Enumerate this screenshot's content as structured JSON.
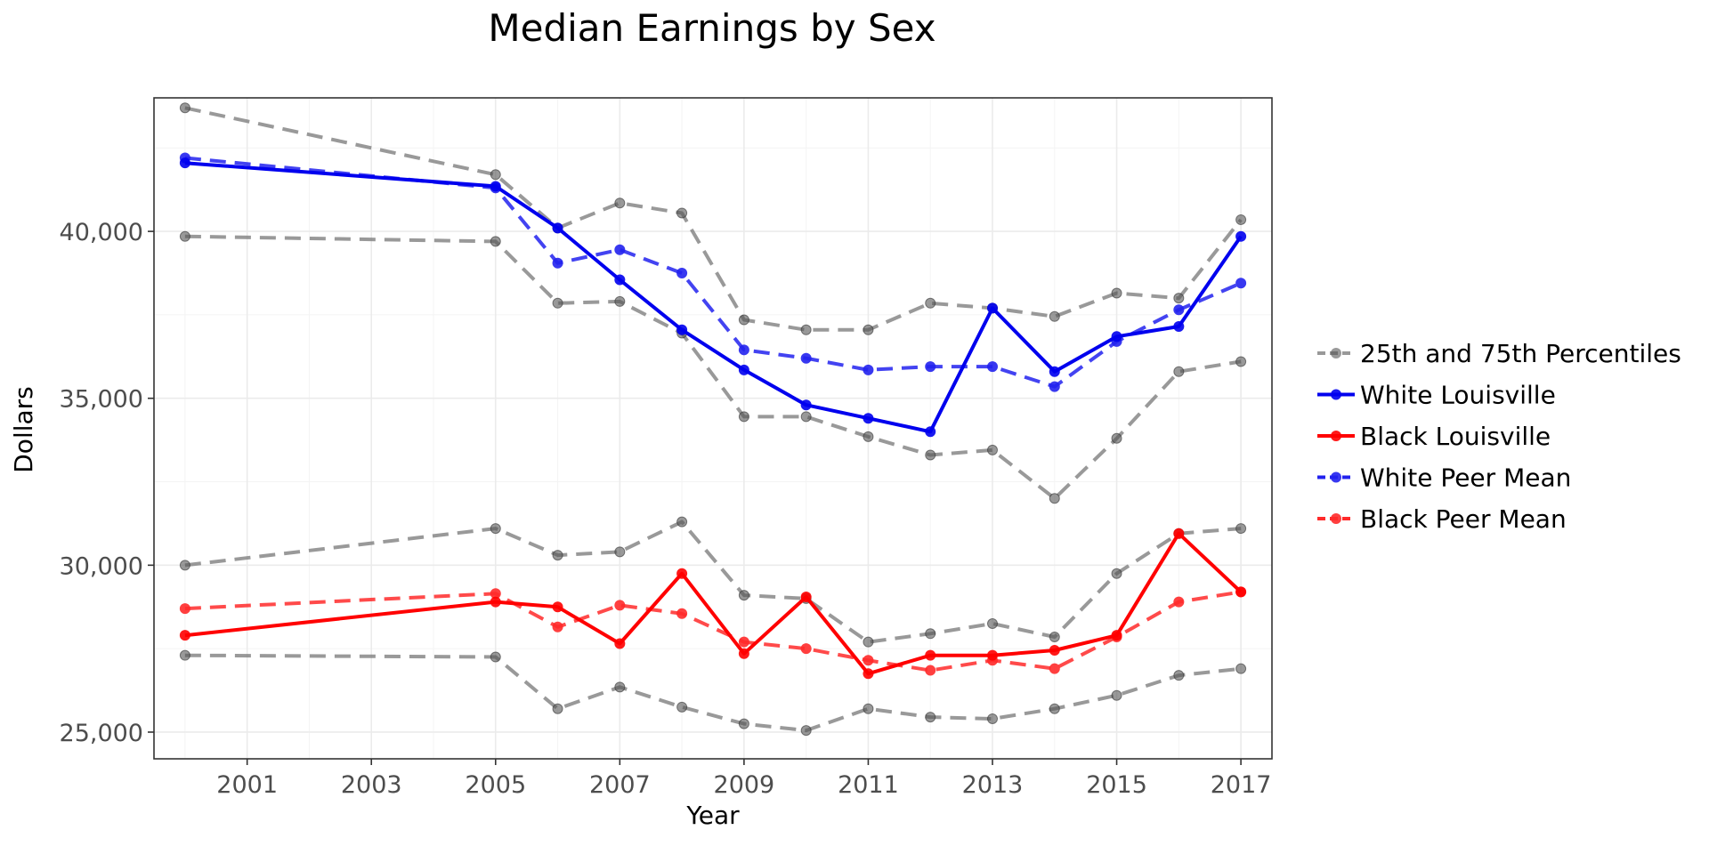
{
  "chart_data": {
    "type": "line",
    "title": "Median Earnings by Sex",
    "xlabel": "Year",
    "ylabel": "Dollars",
    "xlim": [
      1999.5,
      2017.5
    ],
    "ylim": [
      24200,
      44000
    ],
    "x_ticks": [
      2001,
      2003,
      2005,
      2007,
      2009,
      2011,
      2013,
      2015,
      2017
    ],
    "y_ticks": [
      25000,
      30000,
      35000,
      40000
    ],
    "y_tick_labels": [
      "25,000",
      "30,000",
      "35,000",
      "40,000"
    ],
    "grid": true,
    "legend_position": "right",
    "x": [
      2000,
      2005,
      2006,
      2007,
      2008,
      2009,
      2010,
      2011,
      2012,
      2013,
      2014,
      2015,
      2016,
      2017
    ],
    "series": [
      {
        "name": "25th and 75th Percentiles",
        "group": "white-p75",
        "color": "#808080",
        "style": "dashed",
        "values": [
          43700,
          41700,
          40100,
          40850,
          40550,
          37350,
          37050,
          37050,
          37850,
          37700,
          37450,
          38150,
          38000,
          40350
        ]
      },
      {
        "name": "25th and 75th Percentiles",
        "group": "white-p25",
        "color": "#808080",
        "style": "dashed",
        "values": [
          39850,
          39700,
          37850,
          37900,
          36950,
          34450,
          34450,
          33850,
          33300,
          33450,
          32000,
          33800,
          35800,
          36100
        ]
      },
      {
        "name": "25th and 75th Percentiles",
        "group": "black-p75",
        "color": "#808080",
        "style": "dashed",
        "values": [
          30000,
          31100,
          30300,
          30400,
          31300,
          29100,
          29000,
          27700,
          27950,
          28250,
          27850,
          29750,
          30950,
          31100
        ]
      },
      {
        "name": "25th and 75th Percentiles",
        "group": "black-p25",
        "color": "#808080",
        "style": "dashed",
        "values": [
          27300,
          27250,
          25700,
          26350,
          25750,
          25250,
          25050,
          25700,
          25450,
          25400,
          25700,
          26100,
          26700,
          26900
        ]
      },
      {
        "name": "White Peer Mean",
        "color": "#2222ee",
        "style": "dashed",
        "values": [
          42200,
          41300,
          39050,
          39450,
          38750,
          36450,
          36200,
          35850,
          35950,
          35950,
          35350,
          36700,
          37650,
          38450
        ]
      },
      {
        "name": "Black Peer Mean",
        "color": "#ff2a2a",
        "style": "dashed",
        "values": [
          28700,
          29150,
          28150,
          28800,
          28550,
          27700,
          27500,
          27150,
          26850,
          27150,
          26900,
          27850,
          28900,
          29200
        ]
      },
      {
        "name": "White Louisville",
        "color": "#0000ee",
        "style": "solid",
        "values": [
          42050,
          41350,
          40100,
          38550,
          37050,
          35850,
          34800,
          34400,
          34000,
          37700,
          35800,
          36850,
          37150,
          39850
        ]
      },
      {
        "name": "Black Louisville",
        "color": "#ff0000",
        "style": "solid",
        "values": [
          27900,
          28900,
          28750,
          27650,
          29750,
          27350,
          29050,
          26750,
          27300,
          27300,
          27450,
          27900,
          30950,
          29200
        ]
      }
    ],
    "legend": [
      {
        "label": "25th and 75th Percentiles",
        "color": "#808080",
        "style": "dashed"
      },
      {
        "label": "White Louisville",
        "color": "#0000ee",
        "style": "solid"
      },
      {
        "label": "Black Louisville",
        "color": "#ff0000",
        "style": "solid"
      },
      {
        "label": "White Peer Mean",
        "color": "#2222ee",
        "style": "dashed"
      },
      {
        "label": "Black Peer Mean",
        "color": "#ff2a2a",
        "style": "dashed"
      }
    ]
  }
}
